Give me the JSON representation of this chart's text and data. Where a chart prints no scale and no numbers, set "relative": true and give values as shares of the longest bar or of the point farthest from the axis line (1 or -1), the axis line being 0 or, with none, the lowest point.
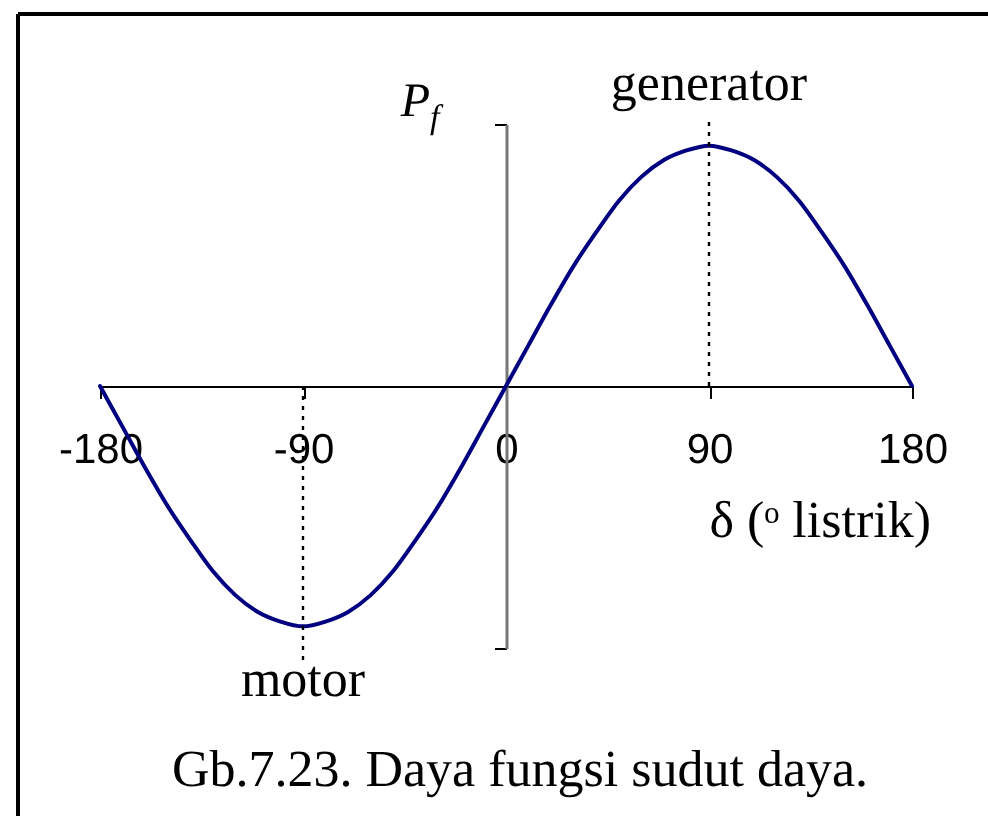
{
  "chart_data": {
    "type": "line",
    "relative": true,
    "x": [
      -180,
      -170,
      -160,
      -150,
      -140,
      -130,
      -120,
      -110,
      -100,
      -90,
      -80,
      -70,
      -60,
      -50,
      -40,
      -30,
      -20,
      -10,
      0,
      10,
      20,
      30,
      40,
      50,
      60,
      70,
      80,
      90,
      100,
      110,
      120,
      130,
      140,
      150,
      160,
      170,
      180
    ],
    "series": [
      {
        "color": "#000080",
        "values": [
          0,
          -0.17,
          -0.34,
          -0.5,
          -0.64,
          -0.77,
          -0.87,
          -0.94,
          -0.98,
          -1,
          -0.98,
          -0.94,
          -0.87,
          -0.77,
          -0.64,
          -0.5,
          -0.34,
          -0.17,
          0,
          0.17,
          0.34,
          0.5,
          0.64,
          0.77,
          0.87,
          0.94,
          0.98,
          1,
          0.98,
          0.94,
          0.87,
          0.77,
          0.64,
          0.5,
          0.34,
          0.17,
          0
        ]
      }
    ],
    "xlim": [
      -180,
      180
    ],
    "xticks": [
      -180,
      -90,
      0,
      90,
      180
    ],
    "xlabel": "δ (ᵒ listrik)",
    "ylabel": "P$_{f}$",
    "ref_lines": [
      {
        "axis": "x",
        "value": 90,
        "label": "generator",
        "color": "#000000",
        "line_style": "dotted"
      },
      {
        "axis": "x",
        "value": -90,
        "label": "motor",
        "color": "#000000",
        "line_style": "dotted"
      }
    ],
    "annotations": [
      "Gb.7.23. Daya fungsi sudut daya."
    ],
    "line_style": "solid"
  }
}
